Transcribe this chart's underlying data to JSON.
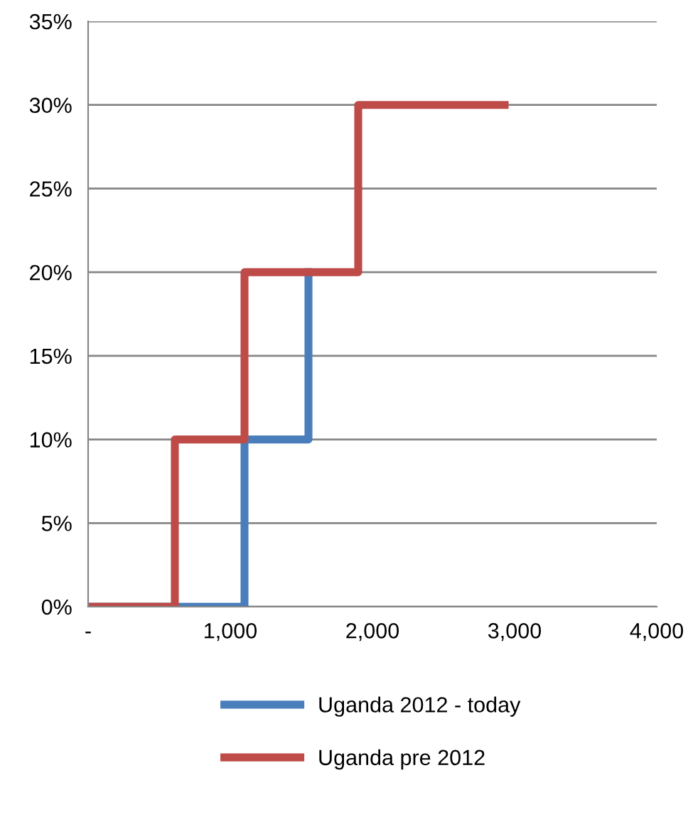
{
  "chart_data": {
    "type": "step",
    "x": [
      0,
      610,
      1100,
      1900,
      2930
    ],
    "series": [
      {
        "name": "Uganda 2012 - today",
        "color": "#4a7ebb",
        "x": [
          0,
          1100,
          1550
        ],
        "values": [
          0,
          10,
          20
        ]
      },
      {
        "name": "Uganda pre 2012",
        "color": "#be4b48",
        "values": [
          0,
          10,
          20,
          30,
          30
        ]
      }
    ],
    "xlim": [
      0,
      4000
    ],
    "xticks": [
      {
        "value": 0,
        "label": "-"
      },
      {
        "value": 1000,
        "label": "1,000"
      },
      {
        "value": 2000,
        "label": "2,000"
      },
      {
        "value": 3000,
        "label": "3,000"
      },
      {
        "value": 4000,
        "label": "4,000"
      }
    ],
    "ylim": [
      0,
      35
    ],
    "yticks": [
      {
        "value": 0,
        "label": "0%"
      },
      {
        "value": 5,
        "label": "5%"
      },
      {
        "value": 10,
        "label": "10%"
      },
      {
        "value": 15,
        "label": "15%"
      },
      {
        "value": 20,
        "label": "20%"
      },
      {
        "value": 25,
        "label": "25%"
      },
      {
        "value": 30,
        "label": "30%"
      },
      {
        "value": 35,
        "label": "35%"
      }
    ],
    "grid": "y",
    "legend": "bottom",
    "line_style": "solid"
  }
}
